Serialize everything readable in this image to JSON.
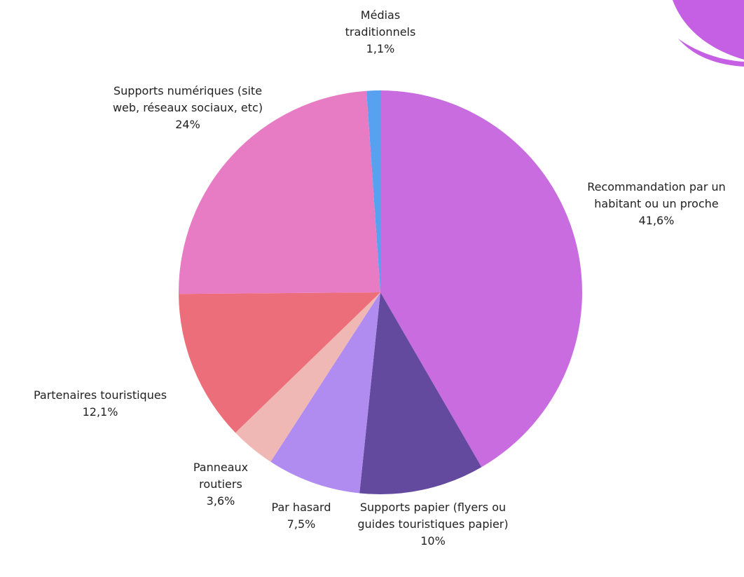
{
  "chart_data": {
    "type": "pie",
    "categories": [
      "Recommandation par un habitant ou un proche",
      "Supports papier (flyers ou guides touristiques papier)",
      "Par hasard",
      "Panneaux routiers",
      "Partenaires touristiques",
      "Supports numériques (site web, réseaux sociaux, etc)",
      "Médias traditionnels"
    ],
    "values": [
      41.6,
      10,
      7.5,
      3.6,
      12.1,
      24,
      1.1
    ],
    "value_labels": [
      "41,6%",
      "10%",
      "7,5%",
      "3,6%",
      "12,1%",
      "24%",
      "1,1%"
    ],
    "colors": [
      "#c86ce0",
      "#634a9f",
      "#b08cf0",
      "#f0b8b4",
      "#ec6e7a",
      "#e87cc4",
      "#5aa0f0"
    ]
  }
}
